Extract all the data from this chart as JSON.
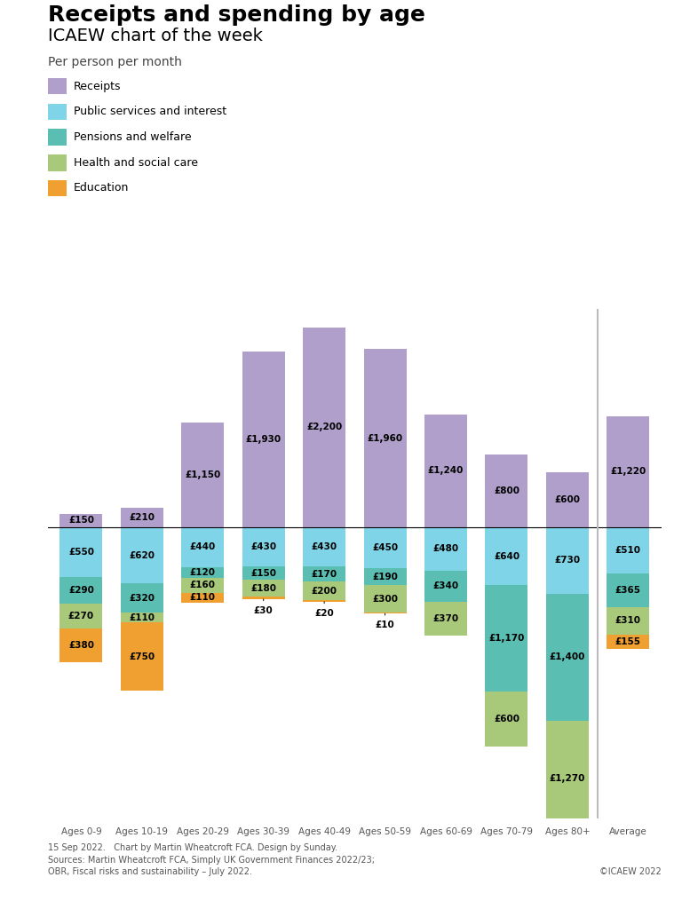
{
  "title": "Receipts and spending by age",
  "subtitle": "ICAEW chart of the week",
  "subheader": "Per person per month",
  "categories": [
    "Ages 0-9",
    "Ages 10-19",
    "Ages 20-29",
    "Ages 30-39",
    "Ages 40-49",
    "Ages 50-59",
    "Ages 60-69",
    "Ages 70-79",
    "Ages 80+",
    "Average"
  ],
  "receipts": [
    150,
    210,
    1150,
    1930,
    2200,
    1960,
    1240,
    800,
    600,
    1220
  ],
  "public_services": [
    550,
    620,
    440,
    430,
    430,
    450,
    480,
    640,
    730,
    510
  ],
  "pensions_welfare": [
    290,
    320,
    120,
    150,
    170,
    190,
    340,
    1170,
    1400,
    365
  ],
  "health_social": [
    270,
    110,
    160,
    180,
    200,
    300,
    370,
    600,
    1270,
    310
  ],
  "education": [
    380,
    750,
    110,
    30,
    20,
    10,
    0,
    0,
    0,
    155
  ],
  "colors": {
    "receipts": "#b09fca",
    "public_services": "#80d4e8",
    "pensions_welfare": "#5abfb2",
    "health_social": "#a8c87a",
    "education": "#f0a030"
  },
  "footer_line1": "15 Sep 2022.   Chart by Martin Wheatcroft FCA. Design by Sunday.",
  "footer_line2": "Sources: Martin Wheatcroft FCA, Simply UK Government Finances 2022/23;",
  "footer_line3": "OBR, Fiscal risks and sustainability – July 2022.",
  "footer_copyright": "©ICAEW 2022",
  "legend": [
    "Receipts",
    "Public services and interest",
    "Pensions and welfare",
    "Health and social care",
    "Education"
  ],
  "small_label_threshold": 60,
  "outside_label_extra": 40
}
